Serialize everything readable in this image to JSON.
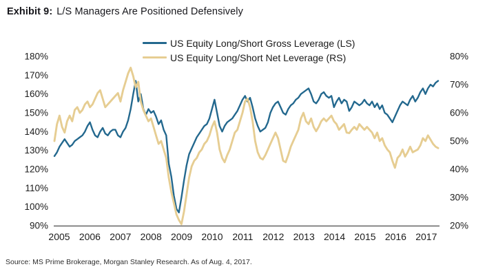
{
  "title": {
    "prefix": "Exhibit 9:",
    "text": "L/S Managers Are Positioned Defensively"
  },
  "source": "Source: MS Prime Brokerage, Morgan Stanley Research. As of Aug. 4, 2017.",
  "colors": {
    "gross": "#23688e",
    "net": "#e6cd92",
    "axis_line": "#4a4a4a",
    "text": "#1c1c1c"
  },
  "chart_data": {
    "type": "line",
    "title": "L/S Managers Are Positioned Defensively",
    "grid": false,
    "legend_position": "top-center",
    "x_unit": "monthly, Jan 2005 - Aug 2017",
    "x_tick_labels": [
      "2005",
      "2006",
      "2007",
      "2008",
      "2009",
      "2010",
      "2011",
      "2012",
      "2013",
      "2014",
      "2015",
      "2016",
      "2017"
    ],
    "left_axis": {
      "ylim": [
        90,
        180
      ],
      "tick_step": 10,
      "unit": "%",
      "tick_labels": [
        "180%",
        "170%",
        "160%",
        "150%",
        "140%",
        "130%",
        "120%",
        "110%",
        "100%",
        "90%"
      ]
    },
    "right_axis": {
      "ylim": [
        20,
        80
      ],
      "tick_step": 10,
      "unit": "%",
      "tick_labels": [
        "80%",
        "70%",
        "60%",
        "50%",
        "40%",
        "30%",
        "20%"
      ]
    },
    "series": [
      {
        "name": "US Equity Long/Short Gross Leverage (LS)",
        "axis": "left",
        "color": "#23688e",
        "values": [
          127,
          129,
          132,
          134,
          136,
          134,
          132,
          133,
          135,
          136,
          137,
          138,
          140,
          143,
          145,
          141,
          138,
          137,
          140,
          142,
          139,
          138,
          140,
          141,
          141,
          138,
          137,
          140,
          142,
          146,
          152,
          160,
          167,
          156,
          160,
          152,
          149,
          152,
          150,
          151,
          148,
          144,
          146,
          141,
          138,
          123,
          116,
          106,
          99,
          97,
          105,
          114,
          122,
          128,
          131,
          134,
          137,
          139,
          141,
          143,
          144,
          147,
          152,
          157,
          150,
          143,
          140,
          143,
          145,
          146,
          147,
          149,
          151,
          154,
          157,
          159,
          156,
          158,
          153,
          147,
          143,
          140,
          141,
          142,
          145,
          150,
          153,
          155,
          156,
          153,
          150,
          149,
          152,
          154,
          155,
          157,
          158,
          160,
          161,
          162,
          163,
          160,
          156,
          155,
          157,
          160,
          161,
          159,
          158,
          159,
          153,
          156,
          158,
          155,
          157,
          156,
          151,
          153,
          156,
          155,
          154,
          155,
          157,
          155,
          154,
          156,
          153,
          155,
          152,
          154,
          150,
          149,
          147,
          145,
          148,
          151,
          154,
          156,
          155,
          154,
          157,
          159,
          156,
          158,
          161,
          163,
          160,
          163,
          165,
          164,
          166,
          167
        ]
      },
      {
        "name": "US Equity Long/Short Net Leverage (RS)",
        "axis": "right",
        "color": "#e6cd92",
        "values": [
          50,
          56,
          59,
          55,
          53,
          57,
          59,
          57,
          61,
          62,
          60,
          61,
          63,
          64,
          62,
          63,
          65,
          67,
          68,
          65,
          62,
          63,
          64,
          65,
          66,
          67,
          64,
          68,
          71,
          74,
          76,
          73,
          69,
          71,
          64,
          61,
          59,
          57,
          58,
          55,
          52,
          49,
          50,
          47,
          44,
          37,
          32,
          28,
          24,
          22,
          20.5,
          25,
          31,
          37,
          41,
          43,
          44,
          46,
          47,
          49,
          50,
          52,
          55,
          57,
          53,
          47,
          44,
          42.5,
          45,
          47,
          50,
          53,
          54,
          57,
          60,
          64,
          65,
          62,
          57,
          50,
          46,
          44,
          43.5,
          45,
          47,
          49,
          51,
          53,
          51,
          47,
          43,
          42.5,
          45,
          48,
          50,
          52,
          54,
          58,
          60,
          57,
          56,
          58,
          55,
          53.5,
          55,
          57,
          58,
          57,
          58,
          59,
          57,
          56,
          54,
          55,
          56,
          53,
          52.8,
          54,
          55,
          54,
          56,
          55,
          54,
          55,
          54,
          53,
          51,
          53,
          50,
          51,
          48.5,
          47,
          46,
          43,
          40.5,
          44,
          45,
          47,
          44.5,
          46,
          48,
          46,
          46.5,
          47,
          48.5,
          51,
          50,
          52,
          50.5,
          49,
          48,
          47.5
        ]
      }
    ]
  }
}
